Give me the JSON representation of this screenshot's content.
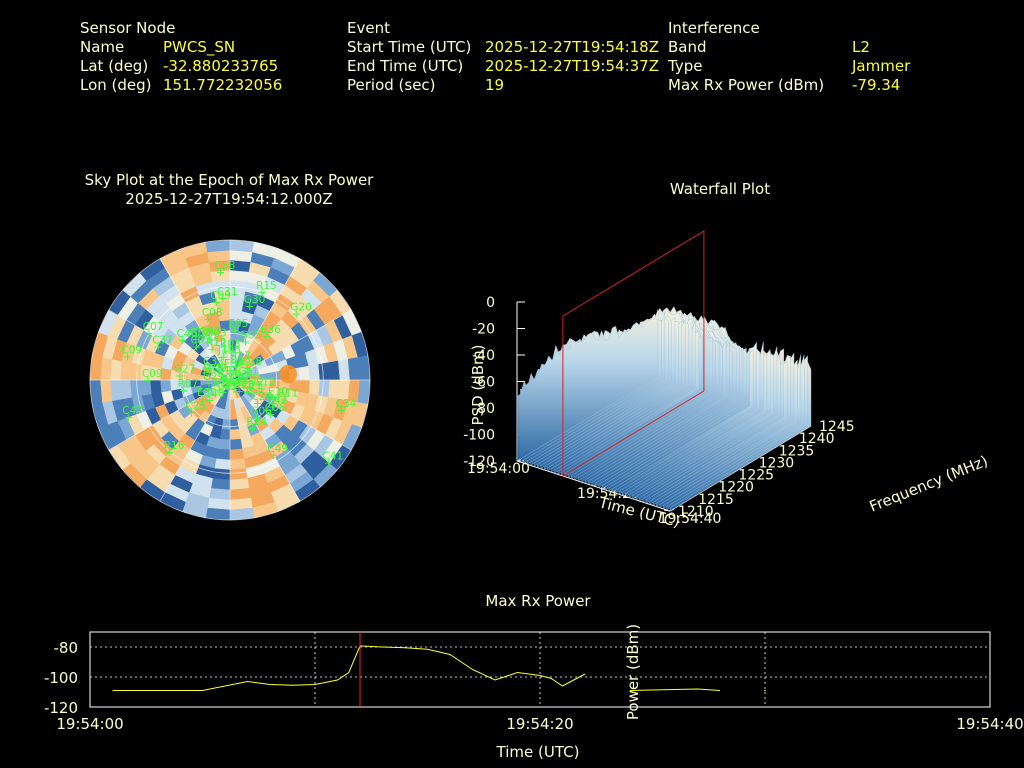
{
  "header": {
    "sensor": {
      "title": "Sensor Node",
      "name_label": "Name",
      "name_value": "PWCS_SN",
      "lat_label": "Lat (deg)",
      "lat_value": "-32.880233765",
      "lon_label": "Lon (deg)",
      "lon_value": "151.772232056"
    },
    "event": {
      "title": "Event",
      "start_label": "Start Time (UTC)",
      "start_value": "2025-12-27T19:54:18Z",
      "end_label": "End Time (UTC)",
      "end_value": "2025-12-27T19:54:37Z",
      "period_label": "Period (sec)",
      "period_value": "19"
    },
    "interference": {
      "title": "Interference",
      "band_label": "Band",
      "band_value": "L2",
      "type_label": "Type",
      "type_value": "Jammer",
      "power_label": "Max Rx Power (dBm)",
      "power_value": "-79.34"
    }
  },
  "skyplot": {
    "title_line1": "Sky Plot at the Epoch of Max Rx Power",
    "title_line2": "2025-12-27T19:54:12.000Z",
    "label_color": "#33ff33",
    "satellites": [
      {
        "id": "E34",
        "az": 0,
        "el": 88
      },
      {
        "id": "J196",
        "az": 345,
        "el": 78
      },
      {
        "id": "R03",
        "az": 352,
        "el": 74
      },
      {
        "id": "R17",
        "az": 20,
        "el": 82
      },
      {
        "id": "R13",
        "az": 24,
        "el": 84
      },
      {
        "id": "E05",
        "az": 5,
        "el": 60
      },
      {
        "id": "G05",
        "az": 22,
        "el": 66
      },
      {
        "id": "R12",
        "az": 330,
        "el": 70
      },
      {
        "id": "G03",
        "az": 335,
        "el": 64
      },
      {
        "id": "C09",
        "az": 350,
        "el": 40
      },
      {
        "id": "C31",
        "az": 355,
        "el": 38
      },
      {
        "id": "G30",
        "az": 15,
        "el": 42
      },
      {
        "id": "C08",
        "az": 340,
        "el": 50
      },
      {
        "id": "J193",
        "az": 328,
        "el": 60
      },
      {
        "id": "E36",
        "az": 40,
        "el": 55
      },
      {
        "id": "C38",
        "az": 55,
        "el": 80
      },
      {
        "id": "G20",
        "az": 45,
        "el": 30
      },
      {
        "id": "R15",
        "az": 20,
        "el": 30
      },
      {
        "id": "C03",
        "az": 315,
        "el": 62
      },
      {
        "id": "C46",
        "az": 310,
        "el": 52
      },
      {
        "id": "E13",
        "az": 290,
        "el": 90
      },
      {
        "id": "J199",
        "az": 285,
        "el": 80
      },
      {
        "id": "C33",
        "az": 300,
        "el": 78
      },
      {
        "id": "G58",
        "az": 320,
        "el": 58
      },
      {
        "id": "G27",
        "az": 275,
        "el": 60
      },
      {
        "id": "C58",
        "az": 355,
        "el": 20
      },
      {
        "id": "C37",
        "az": 295,
        "el": 40
      },
      {
        "id": "C07",
        "az": 300,
        "el": 30
      },
      {
        "id": "C09b",
        "az": 270,
        "el": 38
      },
      {
        "id": "C09c",
        "az": 283,
        "el": 22
      },
      {
        "id": "G29",
        "az": 262,
        "el": 80
      },
      {
        "id": "R07",
        "az": 258,
        "el": 62
      },
      {
        "id": "C47",
        "az": 250,
        "el": 20
      },
      {
        "id": "C41",
        "az": 130,
        "el": 6
      },
      {
        "id": "C34",
        "az": 105,
        "el": 15
      },
      {
        "id": "R21",
        "az": 95,
        "el": 88
      },
      {
        "id": "C11",
        "az": 82,
        "el": 85
      },
      {
        "id": "R16",
        "az": 220,
        "el": 30
      },
      {
        "id": "C49",
        "az": 150,
        "el": 35
      },
      {
        "id": "E11",
        "az": 110,
        "el": 55
      },
      {
        "id": "E12",
        "az": 105,
        "el": 72
      },
      {
        "id": "E10",
        "az": 112,
        "el": 62
      },
      {
        "id": "C42",
        "az": 122,
        "el": 60
      },
      {
        "id": "C12",
        "az": 110,
        "el": 80
      },
      {
        "id": "C06",
        "az": 130,
        "el": 58
      },
      {
        "id": "C21",
        "az": 115,
        "el": 92
      },
      {
        "id": "R24",
        "az": 155,
        "el": 58
      },
      {
        "id": "G06",
        "az": 145,
        "el": 63
      },
      {
        "id": "C11b",
        "az": 125,
        "el": 80
      },
      {
        "id": "G28",
        "az": 140,
        "el": 85
      },
      {
        "id": "C26",
        "az": 130,
        "el": 70
      },
      {
        "id": "C25",
        "az": 230,
        "el": 60
      },
      {
        "id": "C40",
        "az": 225,
        "el": 75
      },
      {
        "id": "E29",
        "az": 228,
        "el": 85
      },
      {
        "id": "C35",
        "az": 210,
        "el": 85
      },
      {
        "id": "G21",
        "az": 215,
        "el": 92
      },
      {
        "id": "R01",
        "az": 205,
        "el": 91
      },
      {
        "id": "E24",
        "az": 155,
        "el": 88
      },
      {
        "id": "E30",
        "az": 235,
        "el": 72
      }
    ]
  },
  "waterfall": {
    "title": "Waterfall Plot",
    "zlabel": "PSD (dBm)",
    "xlabel": "Time (UTC)",
    "ylabel": "Frequency (MHz)",
    "z_ticks": [
      "0",
      "-20",
      "-40",
      "-60",
      "-80",
      "-100",
      "-120"
    ],
    "time_ticks": [
      "19:54:00",
      "19:54:20",
      "19:54:40"
    ],
    "freq_ticks": [
      "1210",
      "1215",
      "1220",
      "1225",
      "1230",
      "1235",
      "1240",
      "1245"
    ]
  },
  "chart_data": {
    "type": "line",
    "title": "Max Rx Power",
    "xlabel": "Time (UTC)",
    "ylabel": "Power (dBm)",
    "x_ticks": [
      "19:54:00",
      "19:54:20",
      "19:54:40"
    ],
    "y_ticks": [
      -80,
      -100,
      -120
    ],
    "xlim": [
      0,
      40
    ],
    "ylim": [
      -120,
      -70
    ],
    "grid": true,
    "marker_x": 12,
    "series": [
      {
        "x": [
          1,
          5,
          7,
          8,
          9,
          10,
          11,
          11.5,
          12,
          13,
          14,
          15,
          16,
          17,
          18,
          19,
          20,
          20.5,
          21,
          22
        ],
        "y": [
          -109,
          -109,
          -103,
          -105,
          -105.5,
          -105,
          -102,
          -97,
          -79.3,
          -80,
          -80.5,
          -81.5,
          -85,
          -95,
          -102,
          -97,
          -99,
          -101,
          -106,
          -98
        ]
      },
      {
        "x": [
          24,
          27,
          27.5,
          28
        ],
        "y": [
          -109,
          -108,
          -108.5,
          -109
        ]
      },
      {
        "x": [
          30
        ],
        "y": [
          -109
        ]
      }
    ],
    "color": "#ffff33",
    "marker_color": "#ff2020"
  }
}
